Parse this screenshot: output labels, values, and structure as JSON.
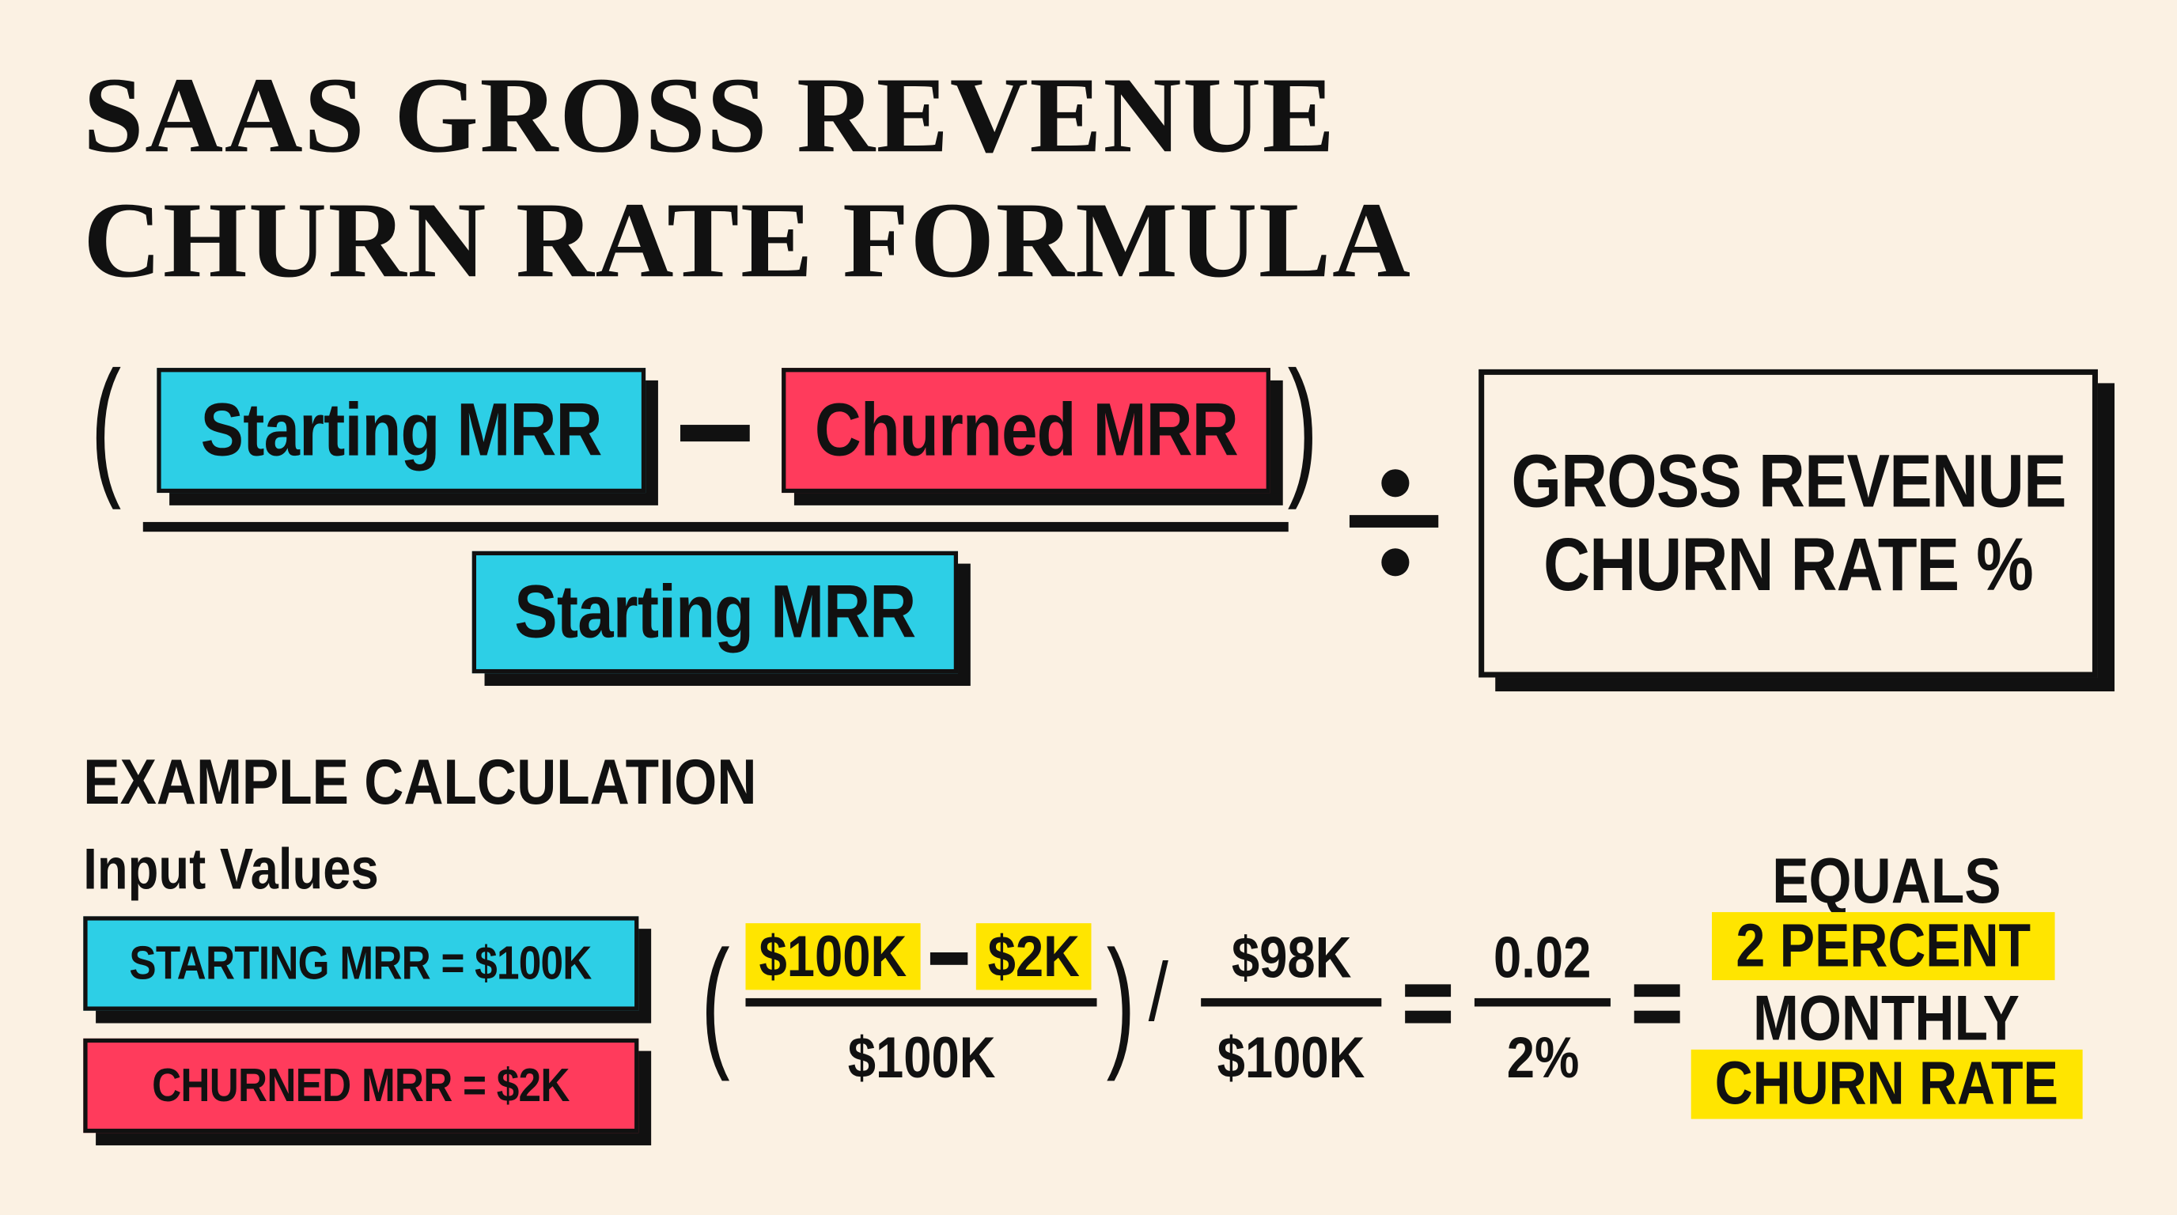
{
  "title": {
    "line1": "SAAS GROSS REVENUE",
    "line2": "CHURN RATE FORMULA"
  },
  "formula": {
    "open_paren": "(",
    "close_paren": ")",
    "minus": "−",
    "numerator_left": "Starting MRR",
    "numerator_right": "Churned MRR",
    "denominator": "Starting MRR",
    "divide_symbol": "÷",
    "result_line1": "GROSS REVENUE",
    "result_line2": "CHURN RATE %"
  },
  "example": {
    "heading": "EXAMPLE CALCULATION",
    "subheading": "Input Values",
    "inputs": [
      "STARTING MRR = $100K",
      "CHURNED MRR = $2K"
    ],
    "open_paren": "(",
    "close_paren": ")",
    "num_a": "$100K",
    "minus": "−",
    "num_b": "$2K",
    "den": "$100K",
    "slash": "/",
    "frac2_num": "$98K",
    "frac2_den": "$100K",
    "equals": "=",
    "frac3_num": "0.02",
    "frac3_den": "2%",
    "result": [
      "EQUALS",
      "2 PERCENT",
      "MONTHLY",
      "CHURN RATE"
    ]
  },
  "colors": {
    "background": "#fbf1e3",
    "starting_mrr": "#2dcfe6",
    "churned_mrr": "#ff3b5c",
    "highlight": "#ffe500",
    "ink": "#111111"
  }
}
